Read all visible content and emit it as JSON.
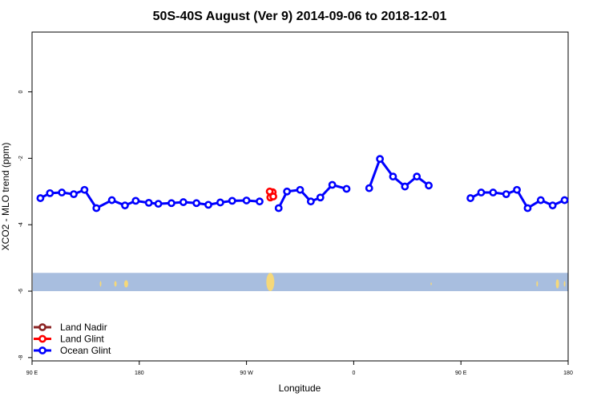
{
  "chart_data": {
    "type": "line",
    "title": "50S-40S August (Ver 9)   2014-09-06 to 2018-12-01",
    "xlabel": "Longitude",
    "ylabel": "XCO2 - MLO trend (ppm)",
    "xlim": [
      90,
      540
    ],
    "ylim": [
      -8.1,
      1.8
    ],
    "x_ticks": [
      {
        "value": 90,
        "label": "90 E"
      },
      {
        "value": 180,
        "label": "180"
      },
      {
        "value": 270,
        "label": "90 W"
      },
      {
        "value": 360,
        "label": "0"
      },
      {
        "value": 450,
        "label": "90 E"
      },
      {
        "value": 540,
        "label": "180"
      }
    ],
    "y_ticks": [
      {
        "value": 0,
        "label": "0"
      },
      {
        "value": -2,
        "label": "-2"
      },
      {
        "value": -4,
        "label": "-4"
      },
      {
        "value": -6,
        "label": "-6"
      },
      {
        "value": -8,
        "label": "-8"
      }
    ],
    "grid": false,
    "legend_position": "bottom-left",
    "map_band": {
      "y_top": -5.45,
      "y_bottom": -6.0,
      "ocean_color": "#a8bedf",
      "land_color": "#f5d87a"
    },
    "series": [
      {
        "name": "Land Nadir",
        "color": "#8b2323",
        "segments": []
      },
      {
        "name": "Land Glint",
        "color": "#ff0000",
        "segments": [
          [
            [
              290,
              -3.18
            ],
            [
              292,
              -3.02
            ],
            [
              292.5,
              -3.15
            ]
          ],
          [
            [
              289.5,
              -3.0
            ]
          ]
        ]
      },
      {
        "name": "Ocean Glint",
        "color": "#0000ff",
        "segments": [
          [
            [
              97,
              -3.2
            ],
            [
              105,
              -3.05
            ],
            [
              115,
              -3.03
            ],
            [
              125,
              -3.08
            ],
            [
              134,
              -2.95
            ],
            [
              144,
              -3.5
            ],
            [
              157,
              -3.26
            ],
            [
              168,
              -3.42
            ],
            [
              177,
              -3.28
            ],
            [
              188,
              -3.34
            ],
            [
              196,
              -3.37
            ],
            [
              207,
              -3.35
            ],
            [
              217,
              -3.32
            ],
            [
              228,
              -3.35
            ],
            [
              238,
              -3.4
            ],
            [
              248,
              -3.33
            ],
            [
              258,
              -3.28
            ],
            [
              270,
              -3.27
            ],
            [
              281,
              -3.3
            ]
          ],
          [
            [
              297,
              -3.5
            ],
            [
              304,
              -3.0
            ],
            [
              315,
              -2.95
            ],
            [
              324,
              -3.3
            ],
            [
              332,
              -3.18
            ],
            [
              342,
              -2.8
            ],
            [
              354,
              -2.92
            ]
          ],
          [
            [
              373,
              -2.9
            ],
            [
              382,
              -2.02
            ],
            [
              393,
              -2.55
            ],
            [
              403,
              -2.85
            ],
            [
              413,
              -2.55
            ],
            [
              423,
              -2.82
            ]
          ],
          [
            [
              458,
              -3.2
            ],
            [
              467,
              -3.03
            ],
            [
              477,
              -3.03
            ],
            [
              488,
              -3.08
            ],
            [
              497,
              -2.95
            ],
            [
              506,
              -3.5
            ],
            [
              517,
              -3.26
            ],
            [
              527,
              -3.42
            ],
            [
              537,
              -3.26
            ]
          ]
        ]
      }
    ]
  }
}
